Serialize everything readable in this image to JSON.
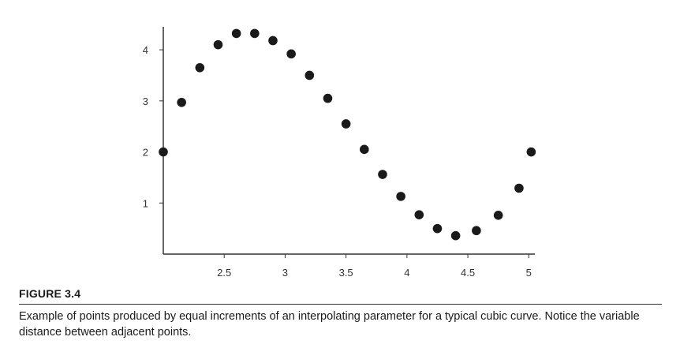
{
  "chart_data": {
    "type": "scatter",
    "title": "",
    "xlabel": "",
    "ylabel": "",
    "xlim": [
      2.0,
      5.05
    ],
    "ylim": [
      0.0,
      4.45
    ],
    "x_ticks": [
      2.5,
      3,
      3.5,
      4,
      4.5,
      5
    ],
    "x_tick_labels": [
      "2.5",
      "3",
      "3.5",
      "4",
      "4.5",
      "5"
    ],
    "y_ticks": [
      1,
      2,
      3,
      4
    ],
    "y_tick_labels": [
      "1",
      "2",
      "3",
      "4"
    ],
    "grid": false,
    "legend": "none",
    "point_color": "#1a1a1a",
    "series": [
      {
        "x": [
          2.0,
          2.15,
          2.3,
          2.45,
          2.6,
          2.75,
          2.9,
          3.05,
          3.2,
          3.35,
          3.5,
          3.65,
          3.8,
          3.95,
          4.1,
          4.25,
          4.4,
          4.57,
          4.75,
          4.92,
          5.02
        ],
        "y": [
          2.0,
          2.97,
          3.65,
          4.1,
          4.32,
          4.32,
          4.18,
          3.92,
          3.5,
          3.05,
          2.55,
          2.05,
          1.56,
          1.13,
          0.77,
          0.5,
          0.36,
          0.46,
          0.76,
          1.29,
          2.0
        ]
      }
    ]
  },
  "figure": {
    "label": "FIGURE 3.4",
    "caption": "Example of points produced by equal increments of an interpolating parameter for a typical cubic curve. Notice the variable distance between adjacent points."
  }
}
